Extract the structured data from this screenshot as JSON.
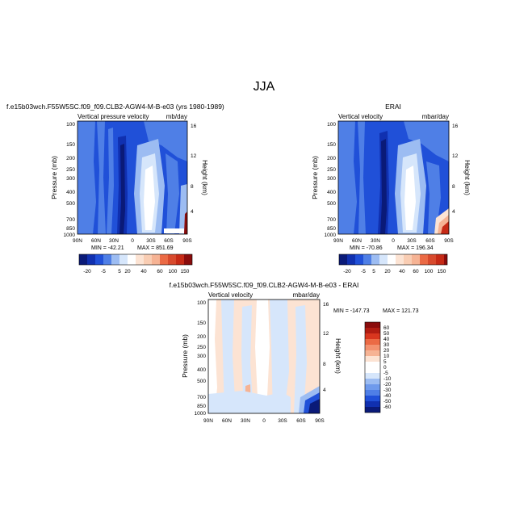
{
  "figure": {
    "season": "JJA"
  },
  "colors": {
    "lo1": "#0a1a78",
    "lo2": "#1030b0",
    "lo3": "#2050d8",
    "mid": "#4f7fe6",
    "light": "#9cbcf2",
    "pale": "#d6e6fb",
    "white": "#ffffff",
    "warm1": "#fce3d3",
    "warm2": "#f6b394",
    "warm3": "#eb6a45",
    "warm4": "#c62a16",
    "warm5": "#8a0c0c"
  },
  "chart_data": [
    {
      "type": "heatmap",
      "panel": "model",
      "title": "f.e15b03wch.F55W5SC.f09_f09.CLB2-AGW4-M-B-e03 (yrs 1980-1989)",
      "left_label": "Vertical pressure velocity",
      "right_label": "mb/day",
      "ylabel": "Pressure (mb)",
      "ylabel_right": "Height (km)",
      "x_ticks": [
        "90N",
        "60N",
        "30N",
        "0",
        "30S",
        "60S",
        "90S"
      ],
      "y_ticks": [
        "100",
        "150",
        "200",
        "250",
        "300",
        "400",
        "500",
        "700",
        "850",
        "1000"
      ],
      "y_ticks_right": [
        "16",
        "12",
        "8",
        "4"
      ],
      "ylim": [
        1000,
        100
      ],
      "min_label": "MIN = -42.21",
      "max_label": "MAX = 851.69",
      "colorbar_labels": [
        "-20",
        "-5",
        "5",
        "20",
        "40",
        "60",
        "100",
        "150"
      ]
    },
    {
      "type": "heatmap",
      "panel": "obs",
      "title": "ERAI",
      "left_label": "Vertical velocity",
      "right_label": "mbar/day",
      "ylabel": "Pressure (mb)",
      "ylabel_right": "Height (km)",
      "x_ticks": [
        "90N",
        "60N",
        "30N",
        "0",
        "30S",
        "60S",
        "90S"
      ],
      "y_ticks": [
        "100",
        "150",
        "200",
        "250",
        "300",
        "400",
        "500",
        "700",
        "850",
        "1000"
      ],
      "y_ticks_right": [
        "16",
        "12",
        "8",
        "4"
      ],
      "ylim": [
        1000,
        100
      ],
      "min_label": "MIN = -70.86",
      "max_label": "MAX = 196.34",
      "colorbar_labels": [
        "-20",
        "-5",
        "5",
        "20",
        "40",
        "60",
        "100",
        "150"
      ]
    },
    {
      "type": "heatmap",
      "panel": "difference",
      "title": "f.e15b03wch.F55W5SC.f09_f09.CLB2-AGW4-M-B-e03 - ERAI",
      "left_label": "Vertical velocity",
      "right_label": "mbar/day",
      "ylabel": "Pressure (mb)",
      "ylabel_right": "Height (km)",
      "x_ticks": [
        "90N",
        "60N",
        "30N",
        "0",
        "30S",
        "60S",
        "90S"
      ],
      "y_ticks": [
        "100",
        "150",
        "200",
        "250",
        "300",
        "400",
        "500",
        "700",
        "850",
        "1000"
      ],
      "y_ticks_right": [
        "16",
        "12",
        "8",
        "4"
      ],
      "ylim": [
        1000,
        100
      ],
      "min_label": "MIN = -147.73",
      "max_label": "MAX = 121.73",
      "colorbar_labels": [
        "60",
        "50",
        "40",
        "30",
        "20",
        "10",
        "5",
        "0",
        "-5",
        "-10",
        "-20",
        "-30",
        "-40",
        "-50",
        "-60"
      ]
    }
  ]
}
